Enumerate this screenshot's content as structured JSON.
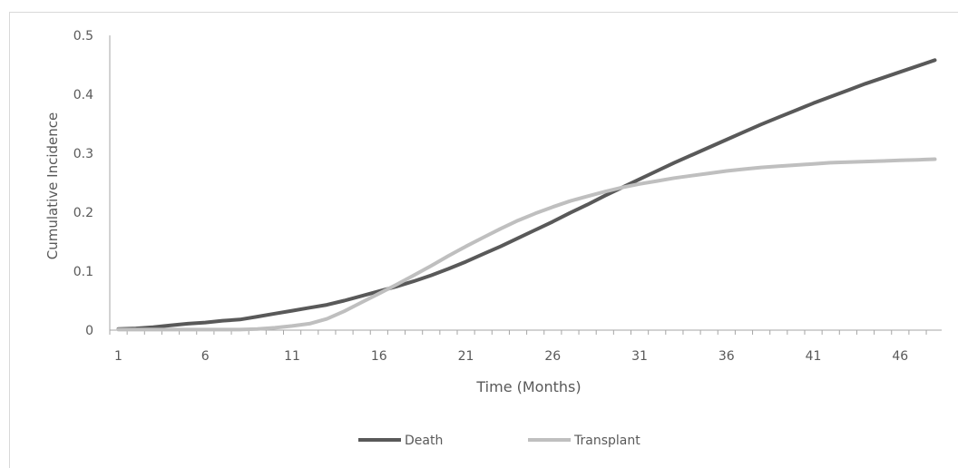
{
  "chart_data": {
    "type": "line",
    "title": "",
    "xlabel": "Time (Months)",
    "ylabel": "Cumulative Incidence",
    "x": [
      1,
      2,
      3,
      4,
      5,
      6,
      7,
      8,
      9,
      10,
      11,
      12,
      13,
      14,
      15,
      16,
      17,
      18,
      19,
      20,
      21,
      22,
      23,
      24,
      25,
      26,
      27,
      28,
      29,
      30,
      31,
      32,
      33,
      34,
      35,
      36,
      37,
      38,
      39,
      40,
      41,
      42,
      43,
      44,
      45,
      46,
      47,
      48
    ],
    "xlim": [
      1,
      48
    ],
    "x_ticks": [
      "1",
      "6",
      "11",
      "16",
      "21",
      "26",
      "31",
      "36",
      "41",
      "46"
    ],
    "x_tick_values": [
      1,
      6,
      11,
      16,
      21,
      26,
      31,
      36,
      41,
      46
    ],
    "ylim": [
      0,
      0.5
    ],
    "y_ticks": [
      "0",
      "0.1",
      "0.2",
      "0.3",
      "0.4",
      "0.5"
    ],
    "y_tick_values": [
      0,
      0.1,
      0.2,
      0.3,
      0.4,
      0.5
    ],
    "grid": false,
    "legend_position": "bottom",
    "series": [
      {
        "name": "Death",
        "color": "#595959",
        "values": [
          0.002,
          0.003,
          0.005,
          0.008,
          0.011,
          0.013,
          0.016,
          0.018,
          0.023,
          0.028,
          0.033,
          0.038,
          0.043,
          0.05,
          0.058,
          0.066,
          0.074,
          0.083,
          0.093,
          0.104,
          0.116,
          0.129,
          0.142,
          0.156,
          0.17,
          0.184,
          0.199,
          0.213,
          0.228,
          0.242,
          0.256,
          0.27,
          0.284,
          0.297,
          0.31,
          0.323,
          0.336,
          0.349,
          0.361,
          0.373,
          0.385,
          0.396,
          0.407,
          0.418,
          0.428,
          0.438,
          0.448,
          0.458
        ]
      },
      {
        "name": "Transplant",
        "color": "#bfbfbf",
        "values": [
          0.001,
          0.001,
          0.001,
          0.001,
          0.001,
          0.001,
          0.001,
          0.001,
          0.002,
          0.004,
          0.007,
          0.011,
          0.019,
          0.032,
          0.047,
          0.062,
          0.077,
          0.093,
          0.109,
          0.126,
          0.142,
          0.157,
          0.172,
          0.186,
          0.198,
          0.209,
          0.219,
          0.227,
          0.235,
          0.242,
          0.248,
          0.253,
          0.258,
          0.262,
          0.266,
          0.27,
          0.273,
          0.276,
          0.278,
          0.28,
          0.282,
          0.284,
          0.285,
          0.286,
          0.287,
          0.288,
          0.289,
          0.29
        ]
      }
    ]
  }
}
